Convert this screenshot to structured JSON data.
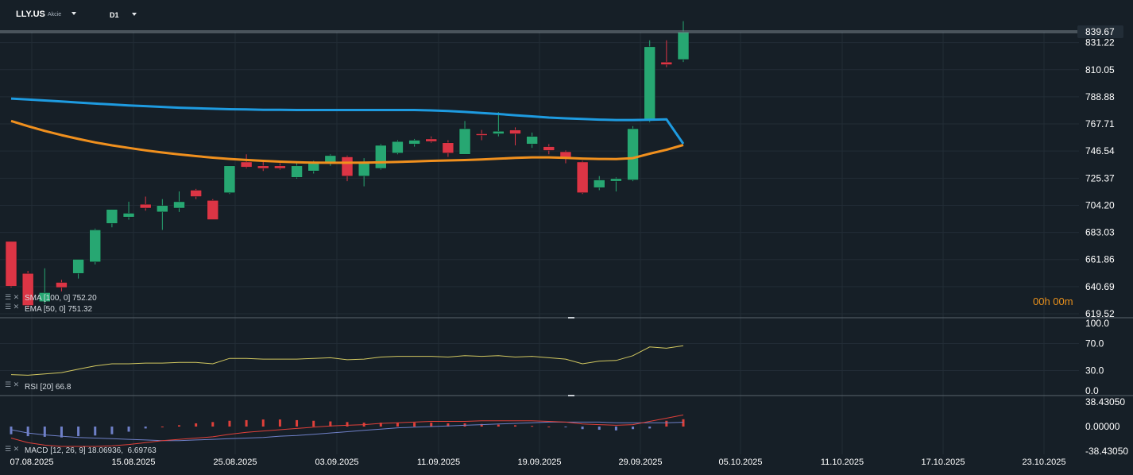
{
  "header": {
    "symbol": "LLY.US",
    "symbol_type": "Akcie",
    "timeframe": "D1"
  },
  "timer": "00h 00m",
  "colors": {
    "background": "#161f27",
    "up": "#27a772",
    "down": "#dc3545",
    "sma": "#1e9be0",
    "ema": "#f0901e",
    "rsi": "#d2c860",
    "macd_line": "#e0403a",
    "macd_signal": "#6f80c8"
  },
  "chart_data": [
    {
      "type": "candlestick",
      "title": "LLY.US",
      "current_price": "839.67",
      "ylim": [
        619.52,
        839.67
      ],
      "y_ticks": [
        "839.67",
        "831.22",
        "810.05",
        "788.88",
        "767.71",
        "746.54",
        "725.37",
        "704.20",
        "683.03",
        "661.86",
        "640.69",
        "619.52"
      ],
      "x_ticks": [
        "07.08.2025",
        "15.08.2025",
        "25.08.2025",
        "03.09.2025",
        "11.09.2025",
        "19.09.2025",
        "29.09.2025",
        "05.10.2025",
        "11.10.2025",
        "17.10.2025",
        "23.10.2025"
      ],
      "candles": [
        {
          "date": "07.08.2025",
          "o": 676,
          "h": 676,
          "l": 640,
          "c": 641
        },
        {
          "date": "08.08.2025",
          "o": 651,
          "h": 653,
          "l": 624,
          "c": 626
        },
        {
          "date": "11.08.2025",
          "o": 629,
          "h": 655,
          "l": 627,
          "c": 636
        },
        {
          "date": "12.08.2025",
          "o": 644,
          "h": 646,
          "l": 637,
          "c": 640
        },
        {
          "date": "13.08.2025",
          "o": 651,
          "h": 662,
          "l": 647,
          "c": 662
        },
        {
          "date": "14.08.2025",
          "o": 660,
          "h": 686,
          "l": 658,
          "c": 685
        },
        {
          "date": "15.08.2025",
          "o": 690,
          "h": 701,
          "l": 687,
          "c": 701
        },
        {
          "date": "18.08.2025",
          "o": 695,
          "h": 707,
          "l": 693,
          "c": 698
        },
        {
          "date": "19.08.2025",
          "o": 705,
          "h": 711,
          "l": 700,
          "c": 702
        },
        {
          "date": "20.08.2025",
          "o": 699,
          "h": 709,
          "l": 685,
          "c": 704
        },
        {
          "date": "21.08.2025",
          "o": 702,
          "h": 715,
          "l": 699,
          "c": 707
        },
        {
          "date": "22.08.2025",
          "o": 716,
          "h": 717,
          "l": 709,
          "c": 711
        },
        {
          "date": "25.08.2025",
          "o": 708,
          "h": 709,
          "l": 693,
          "c": 693
        },
        {
          "date": "26.08.2025",
          "o": 714,
          "h": 735,
          "l": 713,
          "c": 735
        },
        {
          "date": "27.08.2025",
          "o": 738,
          "h": 744,
          "l": 733,
          "c": 734
        },
        {
          "date": "28.08.2025",
          "o": 735,
          "h": 739,
          "l": 731,
          "c": 733
        },
        {
          "date": "29.08.2025",
          "o": 735,
          "h": 737,
          "l": 732,
          "c": 733
        },
        {
          "date": "01.09.2025",
          "o": 726,
          "h": 737,
          "l": 725,
          "c": 735
        },
        {
          "date": "02.09.2025",
          "o": 731,
          "h": 739,
          "l": 729,
          "c": 738
        },
        {
          "date": "03.09.2025",
          "o": 737,
          "h": 744,
          "l": 735,
          "c": 743
        },
        {
          "date": "04.09.2025",
          "o": 742,
          "h": 743,
          "l": 723,
          "c": 727
        },
        {
          "date": "05.09.2025",
          "o": 727,
          "h": 741,
          "l": 719,
          "c": 737
        },
        {
          "date": "08.09.2025",
          "o": 733,
          "h": 752,
          "l": 732,
          "c": 751
        },
        {
          "date": "09.09.2025",
          "o": 745,
          "h": 755,
          "l": 744,
          "c": 754
        },
        {
          "date": "10.09.2025",
          "o": 752,
          "h": 756,
          "l": 750,
          "c": 755
        },
        {
          "date": "11.09.2025",
          "o": 756,
          "h": 758,
          "l": 753,
          "c": 754
        },
        {
          "date": "12.09.2025",
          "o": 753,
          "h": 755,
          "l": 742,
          "c": 745
        },
        {
          "date": "15.09.2025",
          "o": 744,
          "h": 770,
          "l": 744,
          "c": 764
        },
        {
          "date": "16.09.2025",
          "o": 760,
          "h": 763,
          "l": 755,
          "c": 759
        },
        {
          "date": "17.09.2025",
          "o": 760,
          "h": 777,
          "l": 758,
          "c": 762
        },
        {
          "date": "18.09.2025",
          "o": 763,
          "h": 765,
          "l": 751,
          "c": 760
        },
        {
          "date": "19.09.2025",
          "o": 752,
          "h": 761,
          "l": 749,
          "c": 758
        },
        {
          "date": "22.09.2025",
          "o": 750,
          "h": 752,
          "l": 744,
          "c": 747
        },
        {
          "date": "23.09.2025",
          "o": 746,
          "h": 747,
          "l": 737,
          "c": 741
        },
        {
          "date": "24.09.2025",
          "o": 738,
          "h": 739,
          "l": 713,
          "c": 714
        },
        {
          "date": "25.09.2025",
          "o": 718,
          "h": 727,
          "l": 716,
          "c": 724
        },
        {
          "date": "26.09.2025",
          "o": 723,
          "h": 726,
          "l": 715,
          "c": 725
        },
        {
          "date": "29.09.2025",
          "o": 724,
          "h": 766,
          "l": 723,
          "c": 764
        },
        {
          "date": "30.09.2025",
          "o": 770,
          "h": 833,
          "l": 769,
          "c": 828
        },
        {
          "date": "01.10.2025",
          "o": 816,
          "h": 833,
          "l": 812,
          "c": 814
        },
        {
          "date": "02.10.2025",
          "o": 818,
          "h": 848,
          "l": 816,
          "c": 839.67
        }
      ],
      "sma": {
        "label": "SMA [100, 0]",
        "value": "752.20",
        "values": [
          787.5,
          786.8,
          786.0,
          785.2,
          784.4,
          783.6,
          782.9,
          782.2,
          781.6,
          781.0,
          780.4,
          780.0,
          779.6,
          779.2,
          779.0,
          778.8,
          778.7,
          778.6,
          778.6,
          778.6,
          778.6,
          778.6,
          778.6,
          778.6,
          778.6,
          778.3,
          777.8,
          777.1,
          776.3,
          775.5,
          774.5,
          773.6,
          772.7,
          772.1,
          771.6,
          771.1,
          770.8,
          770.8,
          771.0,
          771.3,
          752.2
        ]
      },
      "ema": {
        "label": "EMA [50, 0]",
        "value": "751.32",
        "values": [
          770.0,
          766.0,
          762.3,
          759.0,
          756.0,
          753.3,
          751.0,
          749.0,
          747.1,
          745.4,
          743.9,
          742.6,
          741.4,
          740.4,
          739.6,
          738.9,
          738.3,
          737.8,
          737.5,
          737.4,
          737.4,
          737.5,
          737.7,
          738.0,
          738.4,
          738.9,
          739.2,
          739.5,
          740.0,
          740.6,
          741.2,
          741.6,
          741.6,
          741.2,
          740.7,
          740.4,
          740.3,
          741.0,
          744.5,
          747.5,
          751.32
        ]
      },
      "pane_type": "price"
    },
    {
      "type": "line",
      "title": "RSI",
      "label": "RSI [20]",
      "value": "66.8",
      "y_ticks": [
        "100.0",
        "70.0",
        "30.0",
        "0.0"
      ],
      "ylim": [
        0,
        100
      ],
      "values": [
        24,
        23,
        25,
        27,
        32,
        37,
        40,
        40,
        41,
        41,
        42,
        42,
        40,
        48,
        48,
        47,
        47,
        47,
        48,
        49,
        46,
        47,
        50,
        51,
        51,
        51,
        50,
        52,
        51,
        52,
        50,
        51,
        49,
        47,
        40,
        44,
        45,
        52,
        65,
        63,
        66.8
      ]
    },
    {
      "type": "bar",
      "title": "MACD",
      "label": "MACD [12, 26, 9]",
      "value_main": "18.06936",
      "value_signal": "6.69763",
      "y_ticks": [
        "38.43050",
        "0.00000",
        "-38.43050"
      ],
      "ylim": [
        -38.4305,
        38.4305
      ],
      "histogram": [
        -12,
        -15,
        -16,
        -17,
        -15,
        -14,
        -12,
        -8,
        -3,
        0,
        2,
        5,
        7,
        9,
        10,
        11,
        11,
        10,
        9,
        8,
        7,
        6,
        6,
        6,
        6,
        6,
        5,
        5,
        4,
        3,
        2,
        1,
        0,
        -1,
        -4,
        -5,
        -6,
        -4,
        -3,
        9,
        11.4
      ],
      "macd": [
        -18,
        -25,
        -29,
        -31,
        -31,
        -31,
        -30,
        -28,
        -25,
        -22,
        -20,
        -18,
        -16,
        -12,
        -9,
        -7,
        -5,
        -3,
        -1,
        1,
        2,
        3,
        5,
        6,
        7,
        8,
        8,
        8,
        9,
        9,
        9,
        9,
        8,
        7,
        4,
        3,
        2,
        3,
        8,
        13,
        18.07
      ],
      "signal": [
        -5,
        -10,
        -13,
        -15,
        -17,
        -18,
        -19,
        -20,
        -21,
        -22,
        -22,
        -21,
        -20,
        -19,
        -18,
        -17,
        -15,
        -14,
        -12,
        -10,
        -8,
        -6,
        -4,
        -2,
        -1,
        0,
        1,
        2,
        3,
        4,
        5,
        6,
        7,
        7,
        7,
        7,
        6,
        6,
        6,
        6,
        6.7
      ]
    }
  ]
}
